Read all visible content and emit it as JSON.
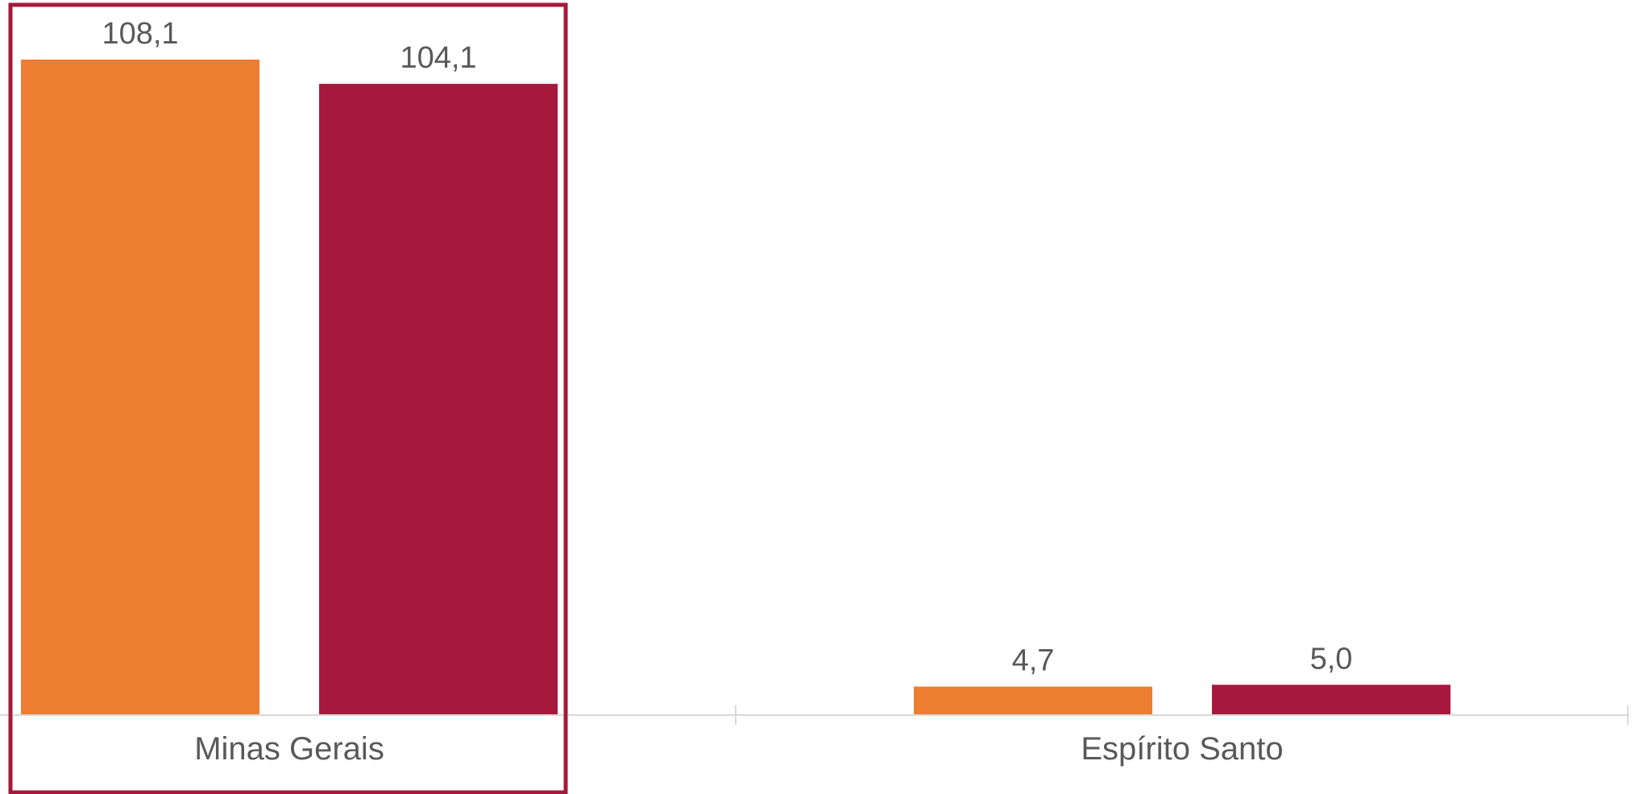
{
  "chart_data": {
    "type": "bar",
    "categories": [
      "Minas Gerais",
      "Espírito Santo"
    ],
    "series": [
      {
        "values": [
          108.1,
          4.7
        ],
        "labels": [
          "108,1",
          "4,7"
        ],
        "color": "#ED7D31"
      },
      {
        "values": [
          104.1,
          5.0
        ],
        "labels": [
          "104,1",
          "5,0"
        ],
        "color": "#A6193C"
      }
    ],
    "ylim": [
      0,
      108.1
    ],
    "grid": false,
    "legend": "none",
    "highlight": {
      "category": "Minas Gerais",
      "color": "#A6193C"
    },
    "axis_color": "#D9D9D9",
    "text_color": "#595959"
  }
}
